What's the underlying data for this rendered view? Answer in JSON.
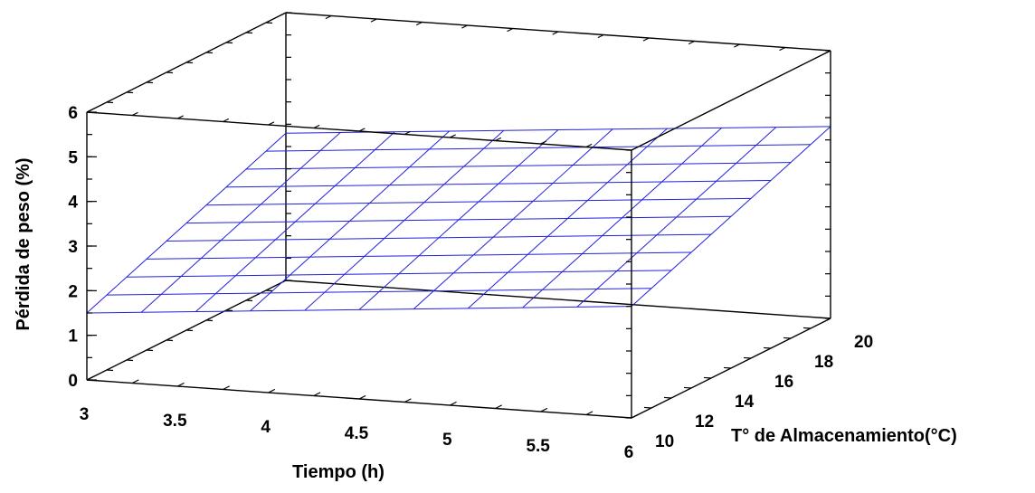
{
  "chart_data": {
    "type": "surface3d",
    "title": "",
    "xlabel": "Tiempo (h)",
    "ylabel": "T° de Almacenamiento(°C)",
    "zlabel": "Pérdida de peso (%)",
    "x_ticks": [
      "3",
      "3.5",
      "4",
      "4.5",
      "5",
      "5.5",
      "6"
    ],
    "y_ticks": [
      "10",
      "12",
      "14",
      "16",
      "18",
      "20"
    ],
    "z_ticks": [
      "0",
      "1",
      "2",
      "3",
      "4",
      "5",
      "6"
    ],
    "xlim": [
      3,
      6
    ],
    "ylim": [
      10,
      20
    ],
    "zlim": [
      0,
      6
    ],
    "grid": false,
    "surface": {
      "x": [
        3,
        3.3,
        3.6,
        3.9,
        4.2,
        4.5,
        4.8,
        5.1,
        5.4,
        5.7,
        6
      ],
      "y": [
        10,
        11,
        12,
        13,
        14,
        15,
        16,
        17,
        18,
        19,
        20
      ],
      "z_at_T10": [
        1.5,
        1.6,
        1.7,
        1.8,
        1.9,
        2.0,
        2.1,
        2.2,
        2.3,
        2.4,
        2.5
      ],
      "z_at_T20": [
        3.3,
        3.4,
        3.5,
        3.6,
        3.7,
        3.8,
        3.9,
        4.0,
        4.1,
        4.2,
        4.3
      ]
    },
    "colors": {
      "surface": "#2222dd",
      "frame": "#000000"
    }
  }
}
